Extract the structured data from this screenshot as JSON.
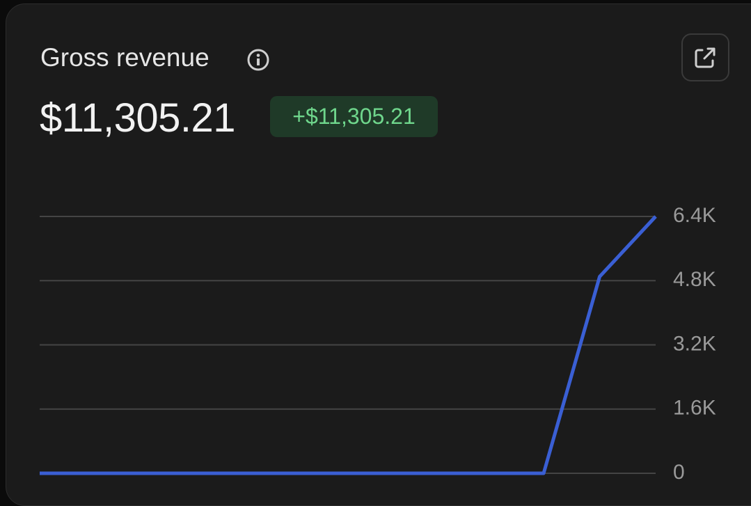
{
  "header": {
    "title": "Gross revenue",
    "amount": "$11,305.21",
    "change": "+$11,305.21"
  },
  "chart_data": {
    "type": "line",
    "categories": [
      null,
      null,
      null,
      null,
      null,
      null,
      null,
      null,
      null,
      null,
      null,
      null
    ],
    "values": [
      0,
      0,
      0,
      0,
      0,
      0,
      0,
      0,
      0,
      0,
      4900,
      6400
    ],
    "color": "#3a5fd4",
    "ylim": [
      0,
      6400
    ],
    "yticks": [
      0,
      {
        "value": 1600,
        "label": "1.6K"
      },
      {
        "value": 3200,
        "label": "3.2K"
      },
      {
        "value": 4800,
        "label": "4.8K"
      },
      {
        "value": 6400,
        "label": "6.4K"
      }
    ],
    "grid": true
  }
}
